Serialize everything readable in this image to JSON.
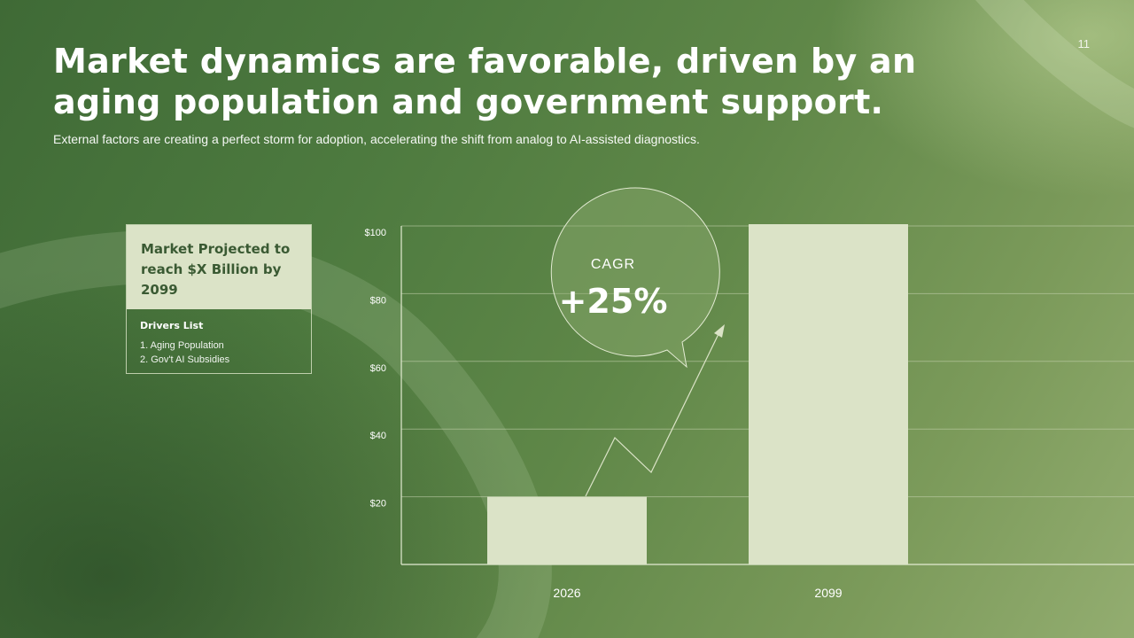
{
  "page_number": "11",
  "title": "Market dynamics are favorable, driven by an aging population and government support.",
  "subtitle": "External factors are creating a perfect storm for adoption, accelerating the shift from analog to AI-assisted diagnostics.",
  "card": {
    "header": "Market Projected to reach $X Billion by 2099",
    "drivers_title": "Drivers List",
    "drivers": [
      "1. Aging Population",
      "2. Gov't AI Subsidies"
    ]
  },
  "callout": {
    "label": "CAGR",
    "value": "+25%"
  },
  "colors": {
    "bar": "#dbe3c7",
    "gridline": "#c9d6b3",
    "card_header_text": "#3a5a33"
  },
  "chart_data": {
    "type": "bar",
    "categories": [
      "2026",
      "2099"
    ],
    "values": [
      20,
      100
    ],
    "title": "",
    "xlabel": "",
    "ylabel": "",
    "ylim": [
      0,
      100
    ],
    "yticks": [
      20,
      40,
      60,
      80,
      100
    ],
    "ytick_labels": [
      "$20",
      "$40",
      "$60",
      "$80",
      "$100"
    ],
    "grid": true
  }
}
